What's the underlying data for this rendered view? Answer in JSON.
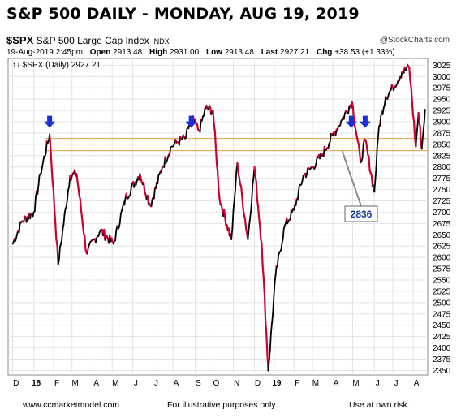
{
  "header": {
    "title": "S&P 500 DAILY - MONDAY, AUG 19, 2019",
    "symbol": "$SPX",
    "name": "S&P 500 Large Cap Index",
    "exchange": "INDX",
    "source": "@StockCharts.com",
    "datetime": "19-Aug-2019 2:45pm",
    "open_label": "Open",
    "open": "2913.48",
    "high_label": "High",
    "high": "2931.00",
    "low_label": "Low",
    "low": "2913.48",
    "last_label": "Last",
    "last": "2927.21",
    "chg_label": "Chg",
    "chg": "+38.53 (+1.33%)",
    "legend": "$SPX (Daily) 2927.21"
  },
  "footer": {
    "left": "www.ccmarketmodel.com",
    "center": "For illustrative purposes only.",
    "right": "Use at own risk."
  },
  "chart_data": {
    "type": "line",
    "title": "S&P 500 DAILY - MONDAY, AUG 19, 2019",
    "series": [
      {
        "name": "$SPX (Daily) 2927.21",
        "x": [
          "2017-12-01",
          "2017-12-15",
          "2018-01-02",
          "2018-01-12",
          "2018-01-26",
          "2018-02-08",
          "2018-02-26",
          "2018-03-08",
          "2018-03-23",
          "2018-04-13",
          "2018-05-03",
          "2018-05-21",
          "2018-06-12",
          "2018-06-28",
          "2018-07-16",
          "2018-07-30",
          "2018-08-08",
          "2018-08-21",
          "2018-08-29",
          "2018-09-10",
          "2018-09-20",
          "2018-10-01",
          "2018-10-11",
          "2018-10-29",
          "2018-11-07",
          "2018-11-23",
          "2018-12-03",
          "2018-12-14",
          "2018-12-24",
          "2019-01-04",
          "2019-01-18",
          "2019-02-01",
          "2019-02-15",
          "2019-03-01",
          "2019-03-15",
          "2019-04-01",
          "2019-04-15",
          "2019-04-30",
          "2019-05-13",
          "2019-05-20",
          "2019-06-03",
          "2019-06-10",
          "2019-06-20",
          "2019-07-01",
          "2019-07-15",
          "2019-07-26",
          "2019-08-05",
          "2019-08-09",
          "2019-08-14",
          "2019-08-19"
        ],
        "values": [
          2630,
          2680,
          2700,
          2785,
          2872,
          2585,
          2780,
          2785,
          2610,
          2660,
          2630,
          2730,
          2785,
          2715,
          2800,
          2845,
          2855,
          2865,
          2910,
          2880,
          2930,
          2925,
          2730,
          2640,
          2810,
          2640,
          2800,
          2630,
          2350,
          2560,
          2670,
          2705,
          2780,
          2800,
          2825,
          2870,
          2905,
          2945,
          2810,
          2860,
          2745,
          2890,
          2955,
          2975,
          3010,
          3020,
          2845,
          2920,
          2840,
          2927
        ]
      }
    ],
    "ylim": [
      2340,
      3040
    ],
    "y_ticks": [
      2350,
      2375,
      2400,
      2425,
      2450,
      2475,
      2500,
      2525,
      2550,
      2575,
      2600,
      2625,
      2650,
      2675,
      2700,
      2725,
      2750,
      2775,
      2800,
      2825,
      2850,
      2875,
      2900,
      2925,
      2950,
      2975,
      3000,
      3025
    ],
    "x_tick_labels": [
      {
        "date": "2017-12-01",
        "label": "D"
      },
      {
        "date": "2018-01-02",
        "label": "18"
      },
      {
        "date": "2018-02-01",
        "label": "F"
      },
      {
        "date": "2018-03-01",
        "label": "M"
      },
      {
        "date": "2018-04-02",
        "label": "A"
      },
      {
        "date": "2018-05-01",
        "label": "M"
      },
      {
        "date": "2018-06-01",
        "label": "J"
      },
      {
        "date": "2018-07-02",
        "label": "J"
      },
      {
        "date": "2018-08-01",
        "label": "A"
      },
      {
        "date": "2018-09-04",
        "label": "S"
      },
      {
        "date": "2018-10-01",
        "label": "O"
      },
      {
        "date": "2018-11-01",
        "label": "N"
      },
      {
        "date": "2018-12-03",
        "label": "D"
      },
      {
        "date": "2019-01-02",
        "label": "19"
      },
      {
        "date": "2019-02-01",
        "label": "F"
      },
      {
        "date": "2019-03-01",
        "label": "M"
      },
      {
        "date": "2019-04-01",
        "label": "A"
      },
      {
        "date": "2019-05-01",
        "label": "M"
      },
      {
        "date": "2019-06-03",
        "label": "J"
      },
      {
        "date": "2019-07-01",
        "label": "J"
      },
      {
        "date": "2019-08-01",
        "label": "A"
      }
    ],
    "x_range": [
      "2017-11-24",
      "2019-08-23"
    ],
    "horizontal_lines": [
      2863,
      2836
    ],
    "arrows": [
      "2018-01-26",
      "2018-08-29",
      "2019-04-29",
      "2019-05-20"
    ],
    "annotations": [
      {
        "text": "2836",
        "x": "2019-04-15",
        "y": 2836
      }
    ],
    "grid": true,
    "colors": {
      "line": "#000000",
      "down": "#cc0033",
      "hline": "#e8a040",
      "arrow": "#1a2fd6",
      "annotation": "#1a3a9c",
      "grid": "#e4e4e4"
    }
  }
}
